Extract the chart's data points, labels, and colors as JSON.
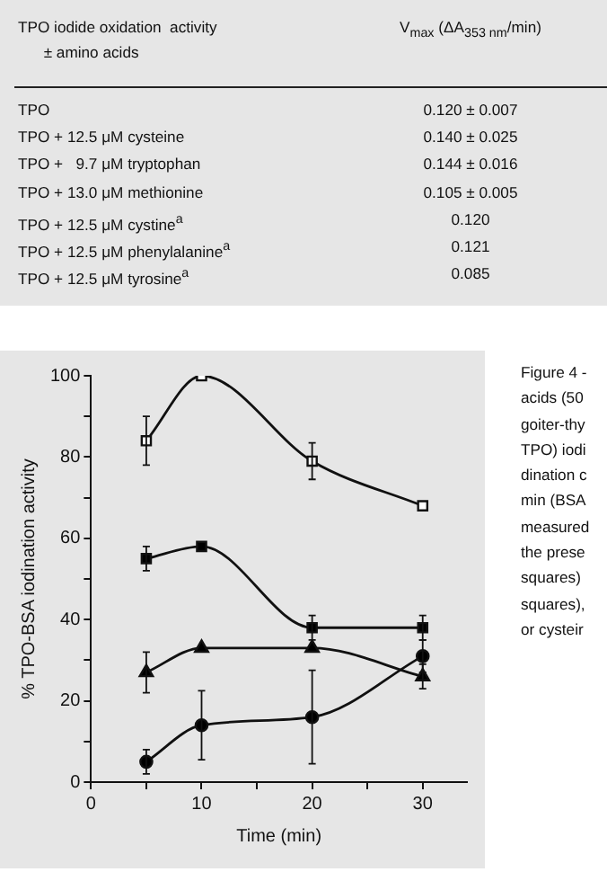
{
  "chart_data": [
    {
      "type": "other",
      "annotations": [
        "TPO iodide oxidation  activity\n      ± amino acids",
        "V$_{max}$ (ΔA$_{353 nm}$/min)",
        "TPO",
        "0.120 ± 0.007",
        "TPO + 12.5 μM cysteine",
        "0.140 ± 0.025",
        "TPO +   9.7 μM tryptophan",
        "0.144 ± 0.016",
        "TPO + 13.0 μM methionine",
        "0.105 ± 0.005",
        "TPO + 12.5 μM cystine$^{a}$",
        "0.120",
        "TPO + 12.5 μM phenylalanine$^{a}$",
        "0.121",
        "TPO + 12.5 μM tyrosine$^{a}$",
        "0.085"
      ]
    },
    {
      "type": "line",
      "xlabel": "Time (min)",
      "ylabel": "% TPO-BSA iodination activity",
      "xlim": [
        0,
        34
      ],
      "xticks": [
        0,
        {
          "value": 5,
          "label": null
        },
        10,
        {
          "value": 15,
          "label": null
        },
        20,
        {
          "value": 25,
          "label": null
        },
        30
      ],
      "ylim": [
        0,
        100
      ],
      "yticks": [
        0,
        {
          "value": 10,
          "label": null
        },
        20,
        {
          "value": 30,
          "label": null
        },
        40,
        {
          "value": 50,
          "label": null
        },
        60,
        {
          "value": 70,
          "label": null
        },
        80,
        {
          "value": 90,
          "label": null
        },
        100
      ],
      "grid": false,
      "legend": false,
      "line_style": "solid",
      "x": [
        5,
        10,
        20,
        30
      ],
      "series": [
        {
          "color": "#ffffff",
          "marker": "square",
          "values": [
            84,
            100,
            79,
            68
          ],
          "errors": [
            6,
            null,
            4.5,
            null
          ]
        },
        {
          "color": "#000000",
          "marker": "square",
          "values": [
            55,
            58,
            38,
            38
          ],
          "errors": [
            3,
            null,
            3,
            3
          ]
        },
        {
          "color": "#000000",
          "marker": "triangle",
          "values": [
            27,
            33,
            33,
            26
          ],
          "errors": [
            5,
            null,
            null,
            3
          ]
        },
        {
          "color": "#000000",
          "marker": "circle",
          "values": [
            5,
            14,
            16,
            31
          ],
          "errors": [
            3,
            8.5,
            11.5,
            4
          ]
        }
      ],
      "annotations": [
        "Figure 4 -",
        "acids (50",
        "goiter-thy",
        "TPO) iodi",
        "dination c",
        "min (BSA",
        "measured",
        "the prese",
        "squares)",
        "squares),",
        "or cysteir"
      ]
    }
  ]
}
